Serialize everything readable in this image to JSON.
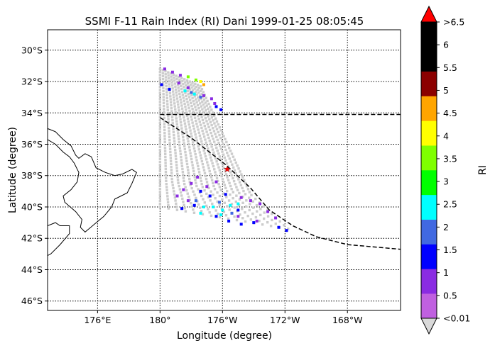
{
  "chart_data": {
    "type": "map-scatter",
    "title": "SSMI F-11 Rain Index (RI) Dani 1999-01-25 08:05:45",
    "xlabel": "Longitude (degree)",
    "ylabel": "Latitude (degree)",
    "colorbar_label": "RI",
    "xlim": [
      172.8,
      195.4
    ],
    "ylim": [
      -46.6,
      -28.7
    ],
    "xticks": [
      {
        "value": 176,
        "label": "176°E"
      },
      {
        "value": 180,
        "label": "180°"
      },
      {
        "value": 184,
        "label": "176°W"
      },
      {
        "value": 188,
        "label": "172°W"
      },
      {
        "value": 192,
        "label": "168°W"
      }
    ],
    "yticks": [
      {
        "value": -30,
        "label": "30°S"
      },
      {
        "value": -32,
        "label": "32°S"
      },
      {
        "value": -34,
        "label": "34°S"
      },
      {
        "value": -36,
        "label": "36°S"
      },
      {
        "value": -38,
        "label": "38°S"
      },
      {
        "value": -40,
        "label": "40°S"
      },
      {
        "value": -42,
        "label": "42°S"
      },
      {
        "value": -44,
        "label": "44°S"
      },
      {
        "value": -46,
        "label": "46°S"
      }
    ],
    "grid": true,
    "colorbar": {
      "tick_labels": [
        "<0.01",
        "0.5",
        "1",
        "1.5",
        "2",
        "2.5",
        "3",
        "3.5",
        "4",
        "4.5",
        "5",
        "5.5",
        "6",
        ">6.5"
      ],
      "colors": [
        "#c060e0",
        "#8a2be2",
        "#0000ff",
        "#4169e1",
        "#00ffff",
        "#00ff00",
        "#7fff00",
        "#ffff00",
        "#ffa500",
        "#8b0000",
        "#000000",
        "#000000"
      ],
      "over_color": "#ff0000",
      "under_color": "#d9d9d9"
    },
    "swath": {
      "color": "#cccccc",
      "corners": [
        [
          180.0,
          -31.2
        ],
        [
          182.6,
          -32.3
        ],
        [
          185.8,
          -39.2
        ],
        [
          188.2,
          -41.4
        ],
        [
          180.0,
          -40.0
        ]
      ]
    },
    "rain_bands": [
      {
        "ri_class": "0.5",
        "points": [
          [
            180.3,
            -31.2
          ],
          [
            180.8,
            -31.4
          ],
          [
            181.3,
            -31.6
          ],
          [
            181.2,
            -32.1
          ],
          [
            181.8,
            -32.4
          ],
          [
            182.8,
            -32.9
          ],
          [
            183.3,
            -33.1
          ],
          [
            183.5,
            -33.4
          ],
          [
            181.5,
            -38.9
          ],
          [
            182.0,
            -38.5
          ],
          [
            182.4,
            -38.1
          ],
          [
            183.0,
            -38.7
          ],
          [
            183.6,
            -38.4
          ],
          [
            181.1,
            -39.3
          ],
          [
            181.8,
            -39.6
          ],
          [
            185.2,
            -39.4
          ],
          [
            185.8,
            -39.6
          ],
          [
            186.4,
            -39.8
          ],
          [
            186.9,
            -40.3
          ],
          [
            187.4,
            -40.7
          ],
          [
            185.0,
            -40.6
          ],
          [
            186.2,
            -40.9
          ]
        ]
      },
      {
        "ri_class": "1",
        "points": [
          [
            180.1,
            -32.2
          ],
          [
            180.6,
            -32.5
          ],
          [
            183.6,
            -33.6
          ],
          [
            183.9,
            -33.8
          ],
          [
            182.6,
            -39.0
          ],
          [
            183.2,
            -39.3
          ],
          [
            184.2,
            -39.2
          ],
          [
            181.4,
            -40.1
          ],
          [
            182.2,
            -39.9
          ],
          [
            183.6,
            -40.6
          ],
          [
            184.4,
            -40.9
          ],
          [
            185.2,
            -41.1
          ],
          [
            186.0,
            -41.0
          ],
          [
            187.6,
            -41.3
          ],
          [
            188.1,
            -41.5
          ],
          [
            185.0,
            -40.2
          ]
        ]
      },
      {
        "ri_class": "1.5",
        "points": [
          [
            182.0,
            -32.7
          ],
          [
            182.6,
            -33.0
          ],
          [
            182.3,
            -39.6
          ],
          [
            183.8,
            -39.7
          ],
          [
            184.6,
            -40.4
          ]
        ]
      },
      {
        "ri_class": "2",
        "points": [
          [
            181.6,
            -32.6
          ],
          [
            182.2,
            -32.8
          ],
          [
            182.8,
            -40.0
          ],
          [
            183.4,
            -40.0
          ],
          [
            184.0,
            -40.2
          ],
          [
            184.5,
            -39.9
          ],
          [
            185.0,
            -39.8
          ],
          [
            182.6,
            -40.4
          ],
          [
            183.9,
            -40.5
          ]
        ]
      },
      {
        "ri_class": "3",
        "points": [
          [
            181.8,
            -31.7
          ],
          [
            182.3,
            -31.9
          ]
        ]
      },
      {
        "ri_class": "3.5",
        "points": [
          [
            182.6,
            -32.0
          ]
        ]
      },
      {
        "ri_class": "4",
        "points": [
          [
            182.8,
            -32.2
          ]
        ]
      }
    ],
    "storm_center": {
      "lon": 184.3,
      "lat": -37.6
    },
    "track": [
      [
        180.0,
        -34.3
      ],
      [
        182.0,
        -35.6
      ],
      [
        184.2,
        -37.3
      ],
      [
        185.8,
        -38.8
      ],
      [
        187.0,
        -40.2
      ],
      [
        188.5,
        -41.2
      ],
      [
        190.0,
        -41.9
      ],
      [
        192.0,
        -42.4
      ],
      [
        195.4,
        -42.7
      ]
    ],
    "dateline_line": {
      "lat": -34.1,
      "lon_from": 180.0,
      "lon_to": 195.4
    },
    "coastline": [
      [
        [
          172.8,
          -35.0
        ],
        [
          173.3,
          -35.2
        ],
        [
          173.8,
          -35.7
        ],
        [
          174.3,
          -36.1
        ],
        [
          174.6,
          -36.7
        ],
        [
          174.8,
          -36.9
        ],
        [
          175.2,
          -36.6
        ],
        [
          175.6,
          -36.8
        ],
        [
          175.9,
          -37.5
        ],
        [
          176.5,
          -37.8
        ],
        [
          177.1,
          -38.0
        ],
        [
          177.6,
          -37.9
        ],
        [
          178.2,
          -37.6
        ],
        [
          178.5,
          -37.8
        ],
        [
          178.2,
          -38.5
        ],
        [
          177.9,
          -39.1
        ],
        [
          177.1,
          -39.5
        ],
        [
          176.9,
          -40.0
        ],
        [
          176.4,
          -40.6
        ],
        [
          175.8,
          -41.1
        ],
        [
          175.2,
          -41.6
        ],
        [
          174.9,
          -41.3
        ],
        [
          175.0,
          -40.8
        ],
        [
          174.6,
          -40.3
        ],
        [
          173.9,
          -39.7
        ],
        [
          173.8,
          -39.3
        ],
        [
          174.3,
          -38.9
        ],
        [
          174.7,
          -38.4
        ],
        [
          174.8,
          -37.8
        ],
        [
          174.5,
          -37.2
        ],
        [
          174.2,
          -36.8
        ],
        [
          173.8,
          -36.5
        ],
        [
          173.3,
          -36.0
        ],
        [
          172.8,
          -35.7
        ]
      ],
      [
        [
          172.8,
          -41.2
        ],
        [
          173.3,
          -41.0
        ],
        [
          173.6,
          -41.2
        ],
        [
          174.2,
          -41.2
        ],
        [
          174.2,
          -41.7
        ],
        [
          173.6,
          -42.4
        ],
        [
          173.0,
          -43.0
        ],
        [
          172.8,
          -43.1
        ]
      ]
    ]
  }
}
